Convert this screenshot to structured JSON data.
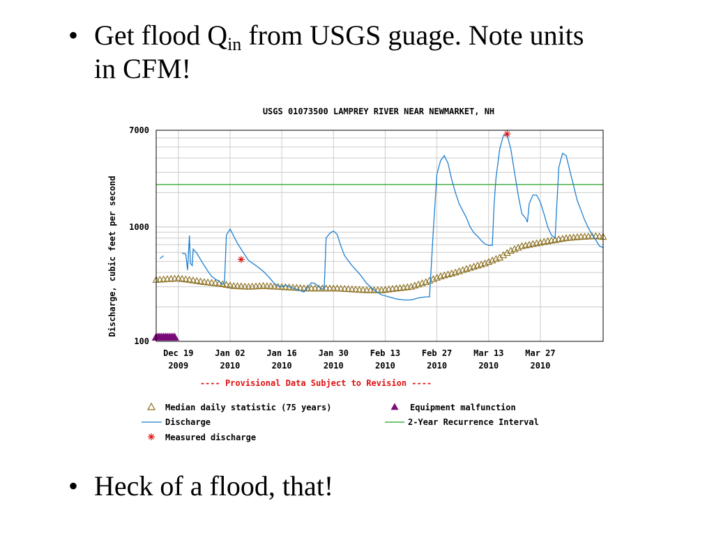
{
  "slide": {
    "bullet_char": "•",
    "bullet1": {
      "pre": "Get flood Q",
      "sub": "in",
      "line1_post": " from USGS guage.  Note units",
      "line2": "in CFM!"
    },
    "bullet2": "Heck of a flood, that!"
  },
  "chart_data": {
    "type": "line",
    "title": "USGS 01073500 LAMPREY RIVER NEAR NEWMARKET, NH",
    "ylabel": "Discharge, cubic feet per second",
    "y_scale": "log",
    "ylim": [
      100,
      7000
    ],
    "y_ticks": [
      "7000",
      "1000",
      "100"
    ],
    "x_start": "2009-12-13",
    "x_end": "2010-04-13",
    "x_ticks": [
      {
        "date": "2009-12-19",
        "line1": "Dec 19",
        "line2": "2009"
      },
      {
        "date": "2010-01-02",
        "line1": "Jan 02",
        "line2": "2010"
      },
      {
        "date": "2010-01-16",
        "line1": "Jan 16",
        "line2": "2010"
      },
      {
        "date": "2010-01-30",
        "line1": "Jan 30",
        "line2": "2010"
      },
      {
        "date": "2010-02-13",
        "line1": "Feb 13",
        "line2": "2010"
      },
      {
        "date": "2010-02-27",
        "line1": "Feb 27",
        "line2": "2010"
      },
      {
        "date": "2010-03-13",
        "line1": "Mar 13",
        "line2": "2010"
      },
      {
        "date": "2010-03-27",
        "line1": "Mar 27",
        "line2": "2010"
      }
    ],
    "grid": true,
    "note": "---- Provisional Data Subject to Revision ----",
    "recurrence_2yr": 2350,
    "series": [
      {
        "name": "Discharge",
        "color": "#1e7fcf",
        "points": [
          [
            "2009-12-14",
            530
          ],
          [
            "2009-12-15",
            560
          ],
          [
            "2009-12-20",
            590
          ],
          [
            "2009-12-21",
            580
          ],
          [
            "2009-12-21 12:00",
            420
          ],
          [
            "2009-12-22",
            840
          ],
          [
            "2009-12-22 06:00",
            480
          ],
          [
            "2009-12-22 18:00",
            460
          ],
          [
            "2009-12-23",
            640
          ],
          [
            "2009-12-24",
            590
          ],
          [
            "2009-12-25",
            520
          ],
          [
            "2009-12-26",
            460
          ],
          [
            "2009-12-27",
            410
          ],
          [
            "2009-12-28",
            370
          ],
          [
            "2009-12-29",
            350
          ],
          [
            "2009-12-30",
            335
          ],
          [
            "2009-12-31",
            315
          ],
          [
            "2009-12-31 12:00",
            330
          ],
          [
            "2010-01-01",
            850
          ],
          [
            "2010-01-02",
            960
          ],
          [
            "2010-01-03",
            830
          ],
          [
            "2010-01-04",
            720
          ],
          [
            "2010-01-05",
            640
          ],
          [
            "2010-01-06",
            570
          ],
          [
            "2010-01-07",
            510
          ],
          [
            "2010-01-09",
            460
          ],
          [
            "2010-01-11",
            410
          ],
          [
            "2010-01-13",
            350
          ],
          [
            "2010-01-14",
            320
          ],
          [
            "2010-01-15",
            305
          ],
          [
            "2010-01-16",
            300
          ],
          [
            "2010-01-17",
            310
          ],
          [
            "2010-01-18",
            300
          ],
          [
            "2010-01-20",
            285
          ],
          [
            "2010-01-22",
            270
          ],
          [
            "2010-01-23",
            295
          ],
          [
            "2010-01-24",
            325
          ],
          [
            "2010-01-25",
            320
          ],
          [
            "2010-01-26",
            300
          ],
          [
            "2010-01-27",
            285
          ],
          [
            "2010-01-27 12:00",
            290
          ],
          [
            "2010-01-28",
            800
          ],
          [
            "2010-01-29",
            880
          ],
          [
            "2010-01-30",
            920
          ],
          [
            "2010-01-31",
            860
          ],
          [
            "2010-02-01",
            680
          ],
          [
            "2010-02-02",
            560
          ],
          [
            "2010-02-04",
            460
          ],
          [
            "2010-02-06",
            390
          ],
          [
            "2010-02-08",
            320
          ],
          [
            "2010-02-10",
            280
          ],
          [
            "2010-02-12",
            255
          ],
          [
            "2010-02-14",
            245
          ],
          [
            "2010-02-16",
            235
          ],
          [
            "2010-02-18",
            230
          ],
          [
            "2010-02-20",
            230
          ],
          [
            "2010-02-22",
            240
          ],
          [
            "2010-02-24",
            245
          ],
          [
            "2010-02-25",
            245
          ],
          [
            "2010-02-26",
            900
          ],
          [
            "2010-02-27",
            2900
          ],
          [
            "2010-02-28",
            3800
          ],
          [
            "2010-03-01",
            4200
          ],
          [
            "2010-03-02",
            3600
          ],
          [
            "2010-03-03",
            2600
          ],
          [
            "2010-03-04",
            2000
          ],
          [
            "2010-03-05",
            1600
          ],
          [
            "2010-03-07",
            1200
          ],
          [
            "2010-03-08",
            1000
          ],
          [
            "2010-03-09",
            890
          ],
          [
            "2010-03-10",
            830
          ],
          [
            "2010-03-11",
            760
          ],
          [
            "2010-03-12",
            710
          ],
          [
            "2010-03-13",
            690
          ],
          [
            "2010-03-14",
            690
          ],
          [
            "2010-03-14 12:00",
            1600
          ],
          [
            "2010-03-15",
            2700
          ],
          [
            "2010-03-16",
            4800
          ],
          [
            "2010-03-17",
            6300
          ],
          [
            "2010-03-18",
            6400
          ],
          [
            "2010-03-19",
            4800
          ],
          [
            "2010-03-20",
            3000
          ],
          [
            "2010-03-21",
            1900
          ],
          [
            "2010-03-22",
            1300
          ],
          [
            "2010-03-23",
            1200
          ],
          [
            "2010-03-23 12:00",
            1100
          ],
          [
            "2010-03-24",
            1600
          ],
          [
            "2010-03-25",
            1900
          ],
          [
            "2010-03-26",
            1900
          ],
          [
            "2010-03-27",
            1650
          ],
          [
            "2010-03-28",
            1300
          ],
          [
            "2010-03-29",
            1000
          ],
          [
            "2010-03-30",
            850
          ],
          [
            "2010-03-31",
            800
          ],
          [
            "2010-04-01",
            3300
          ],
          [
            "2010-04-02",
            4400
          ],
          [
            "2010-04-03",
            4200
          ],
          [
            "2010-04-04",
            3100
          ],
          [
            "2010-04-05",
            2300
          ],
          [
            "2010-04-06",
            1700
          ],
          [
            "2010-04-07",
            1400
          ],
          [
            "2010-04-08",
            1150
          ],
          [
            "2010-04-09",
            980
          ],
          [
            "2010-04-10",
            860
          ],
          [
            "2010-04-11",
            770
          ],
          [
            "2010-04-12",
            680
          ],
          [
            "2010-04-13",
            660
          ]
        ]
      },
      {
        "name": "Median daily statistic (75 years)",
        "color": "#8a6d1a",
        "points": [
          [
            "2009-12-13",
            345
          ],
          [
            "2009-12-16",
            350
          ],
          [
            "2009-12-19",
            355
          ],
          [
            "2009-12-22",
            345
          ],
          [
            "2009-12-26",
            330
          ],
          [
            "2009-12-30",
            320
          ],
          [
            "2010-01-03",
            305
          ],
          [
            "2010-01-07",
            300
          ],
          [
            "2010-01-11",
            305
          ],
          [
            "2010-01-15",
            300
          ],
          [
            "2010-01-19",
            295
          ],
          [
            "2010-01-23",
            290
          ],
          [
            "2010-01-27",
            290
          ],
          [
            "2010-01-31",
            290
          ],
          [
            "2010-02-04",
            285
          ],
          [
            "2010-02-08",
            280
          ],
          [
            "2010-02-12",
            280
          ],
          [
            "2010-02-16",
            290
          ],
          [
            "2010-02-20",
            300
          ],
          [
            "2010-02-24",
            330
          ],
          [
            "2010-02-28",
            370
          ],
          [
            "2010-03-04",
            400
          ],
          [
            "2010-03-08",
            440
          ],
          [
            "2010-03-12",
            480
          ],
          [
            "2010-03-16",
            540
          ],
          [
            "2010-03-19",
            620
          ],
          [
            "2010-03-22",
            680
          ],
          [
            "2010-03-26",
            720
          ],
          [
            "2010-03-30",
            760
          ],
          [
            "2010-04-03",
            800
          ],
          [
            "2010-04-07",
            820
          ],
          [
            "2010-04-11",
            830
          ],
          [
            "2010-04-13",
            820
          ]
        ]
      }
    ],
    "measured_discharge": [
      {
        "date": "2010-01-05",
        "value": 520
      },
      {
        "date": "2010-03-18",
        "value": 6500
      }
    ],
    "equipment_malfunction": {
      "start": "2009-12-13",
      "end": "2009-12-18",
      "value": 100
    },
    "legend": {
      "median": "Median daily statistic (75 years)",
      "equipment": "Equipment malfunction",
      "discharge": "Discharge",
      "recurrence": "2-Year Recurrence Interval",
      "measured": "Measured discharge"
    },
    "colors": {
      "discharge": "#1e7fcf",
      "median": "#8a6d1a",
      "recurrence": "#22a022",
      "measured": "#e01010",
      "equipment": "#7a0a7a",
      "grid": "#cccccc",
      "note": "#e01010"
    }
  }
}
